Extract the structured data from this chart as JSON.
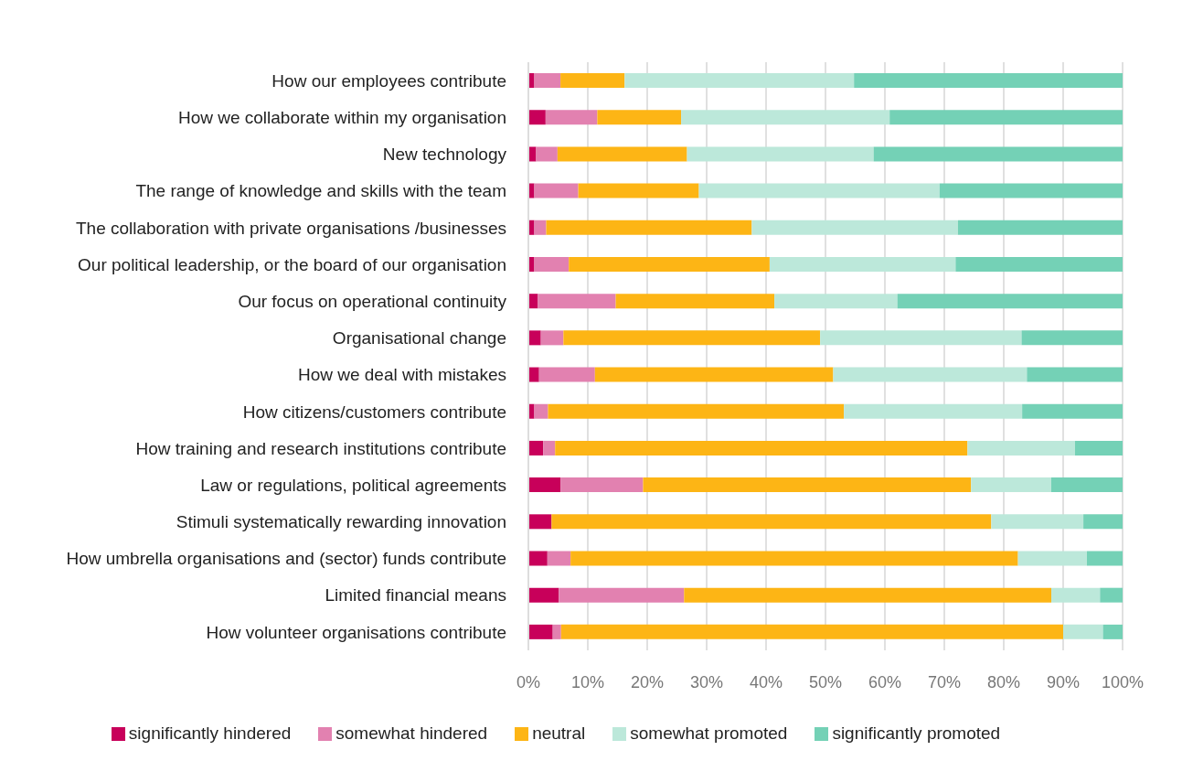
{
  "chart_data": {
    "type": "bar",
    "orientation": "horizontal",
    "stacked": true,
    "categories": [
      "How our employees contribute",
      "How we collaborate within my organisation",
      "New technology",
      "The range of knowledge and skills with the team",
      "The collaboration with private organisations /businesses",
      "Our political leadership, or the board of our organisation",
      "Our focus on operational continuity",
      "Organisational change",
      "How we deal with mistakes",
      "How citizens/customers contribute",
      "How training and research institutions contribute",
      "Law or regulations, political agreements",
      "Stimuli systematically rewarding innovation",
      "How umbrella organisations and (sector) funds contribute",
      "Limited financial means",
      "How volunteer organisations contribute"
    ],
    "series": [
      {
        "name": "significantly hindered",
        "color": "#c8005a",
        "values": [
          1.0,
          2.9,
          1.3,
          1.0,
          1.0,
          1.0,
          1.6,
          2.1,
          1.8,
          1.0,
          2.5,
          5.4,
          3.9,
          3.2,
          5.1,
          4.1
        ]
      },
      {
        "name": "somewhat hindered",
        "color": "#e281b0",
        "values": [
          4.4,
          8.7,
          3.6,
          7.4,
          2.0,
          5.8,
          13.1,
          3.8,
          9.4,
          2.3,
          2.0,
          13.9,
          0,
          3.9,
          21.1,
          1.4
        ]
      },
      {
        "name": "neutral",
        "color": "#fdb515",
        "values": [
          10.8,
          14.1,
          21.8,
          20.3,
          34.6,
          33.8,
          26.7,
          43.2,
          40.1,
          49.8,
          69.4,
          55.2,
          74.0,
          75.3,
          61.8,
          84.5
        ]
      },
      {
        "name": "somewhat promoted",
        "color": "#bce8da",
        "values": [
          38.6,
          35.1,
          31.4,
          40.5,
          34.7,
          31.3,
          20.7,
          33.9,
          32.6,
          30.0,
          18.1,
          13.5,
          15.5,
          11.6,
          8.2,
          6.7
        ]
      },
      {
        "name": "significantly promoted",
        "color": "#74d1b6",
        "values": [
          45.2,
          39.2,
          41.9,
          30.8,
          27.7,
          28.1,
          37.9,
          17.0,
          16.1,
          16.9,
          8.0,
          12.0,
          6.6,
          6.0,
          3.8,
          3.3
        ]
      }
    ],
    "xlim": [
      0,
      100
    ],
    "xticks": [
      {
        "value": 0,
        "label": "0%"
      },
      {
        "value": 10,
        "label": "10%"
      },
      {
        "value": 20,
        "label": "20%"
      },
      {
        "value": 30,
        "label": "30%"
      },
      {
        "value": 40,
        "label": "40%"
      },
      {
        "value": 50,
        "label": "50%"
      },
      {
        "value": 60,
        "label": "60%"
      },
      {
        "value": 70,
        "label": "70%"
      },
      {
        "value": 80,
        "label": "80%"
      },
      {
        "value": 90,
        "label": "90%"
      },
      {
        "value": 100,
        "label": "100%"
      }
    ],
    "grid": "x",
    "legend": "bottom"
  }
}
